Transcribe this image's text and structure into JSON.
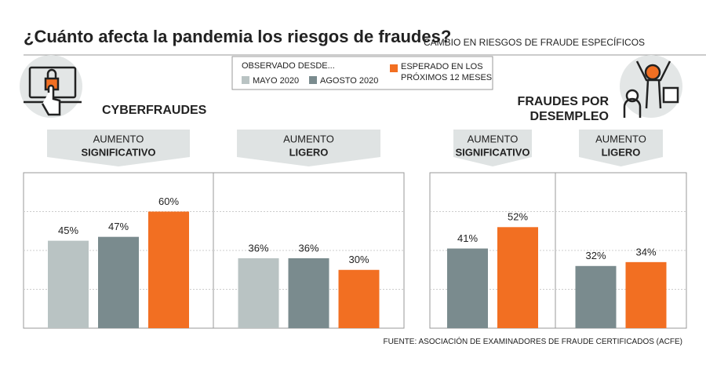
{
  "title": "¿Cuánto afecta la pandemia los riesgos de fraudes?",
  "subtitle": "CAMBIO EN RIESGOS DE FRAUDE ESPECÍFICOS",
  "legend": {
    "title": "OBSERVADO DESDE...",
    "items": [
      {
        "name": "MAYO 2020",
        "color": "#b9c3c3"
      },
      {
        "name": "AGOSTO 2020",
        "color": "#7a8b8e"
      },
      {
        "name": "ESPERADO EN LOS PRÓXIMOS 12 MESES",
        "color": "#f26f22"
      }
    ]
  },
  "sections": [
    {
      "title": "CYBERFRAUDES"
    },
    {
      "title": "FRAUDES POR DESEMPLEO"
    }
  ],
  "chart_data": [
    {
      "type": "bar",
      "title": "AUMENTO",
      "subtitle": "SIGNIFICATIVO",
      "values": [
        45,
        47,
        60
      ],
      "value_labels": [
        "45%",
        "47%",
        "60%"
      ],
      "colors": [
        "#b9c3c3",
        "#7a8b8e",
        "#f26f22"
      ],
      "ylim": [
        0,
        80
      ],
      "yticks": [
        20,
        40,
        60
      ]
    },
    {
      "type": "bar",
      "title": "AUMENTO",
      "subtitle": "LIGERO",
      "values": [
        36,
        36,
        30
      ],
      "value_labels": [
        "36%",
        "36%",
        "30%"
      ],
      "colors": [
        "#b9c3c3",
        "#7a8b8e",
        "#f26f22"
      ],
      "ylim": [
        0,
        80
      ],
      "yticks": [
        20,
        40,
        60
      ]
    },
    {
      "type": "bar",
      "title": "AUMENTO",
      "subtitle": "SIGNIFICATIVO",
      "values": [
        41,
        52
      ],
      "value_labels": [
        "41%",
        "52%"
      ],
      "colors": [
        "#7a8b8e",
        "#f26f22"
      ],
      "ylim": [
        0,
        80
      ],
      "yticks": [
        20,
        40,
        60
      ]
    },
    {
      "type": "bar",
      "title": "AUMENTO",
      "subtitle": "LIGERO",
      "values": [
        32,
        34
      ],
      "value_labels": [
        "32%",
        "34%"
      ],
      "colors": [
        "#7a8b8e",
        "#f26f22"
      ],
      "ylim": [
        0,
        80
      ],
      "yticks": [
        20,
        40,
        60
      ]
    }
  ],
  "source": "FUENTE: ASOCIACIÓN DE EXAMINADORES DE FRAUDE CERTIFICADOS (ACFE)"
}
